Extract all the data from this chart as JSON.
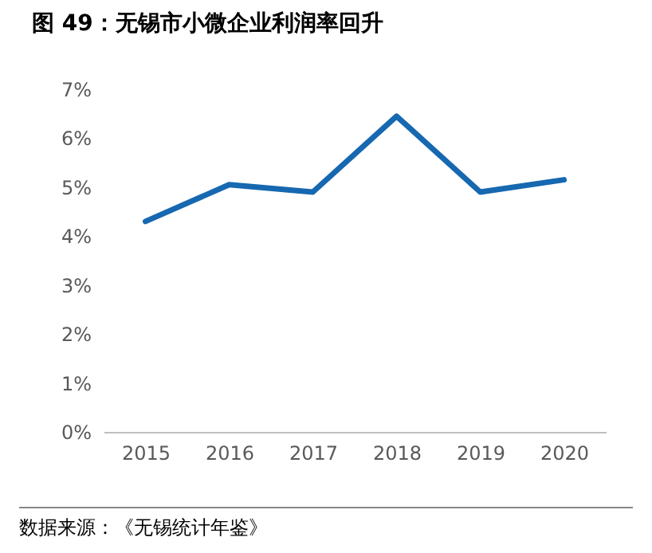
{
  "chart_data": {
    "type": "line",
    "title": "图 49：无锡市小微企业利润率回升",
    "categories": [
      "2015",
      "2016",
      "2017",
      "2018",
      "2019",
      "2020"
    ],
    "series": [
      {
        "color": "#1668b0",
        "values": [
          4.3,
          5.05,
          4.9,
          6.45,
          4.9,
          5.15
        ]
      }
    ],
    "ylim": [
      0,
      7
    ],
    "yticks": [
      {
        "value": 0,
        "label": "0%"
      },
      {
        "value": 1,
        "label": "1%"
      },
      {
        "value": 2,
        "label": "2%"
      },
      {
        "value": 3,
        "label": "3%"
      },
      {
        "value": 4,
        "label": "4%"
      },
      {
        "value": 5,
        "label": "5%"
      },
      {
        "value": 6,
        "label": "6%"
      },
      {
        "value": 7,
        "label": "7%"
      }
    ],
    "annotations": [
      "数据来源：《无锡统计年鉴》"
    ]
  }
}
